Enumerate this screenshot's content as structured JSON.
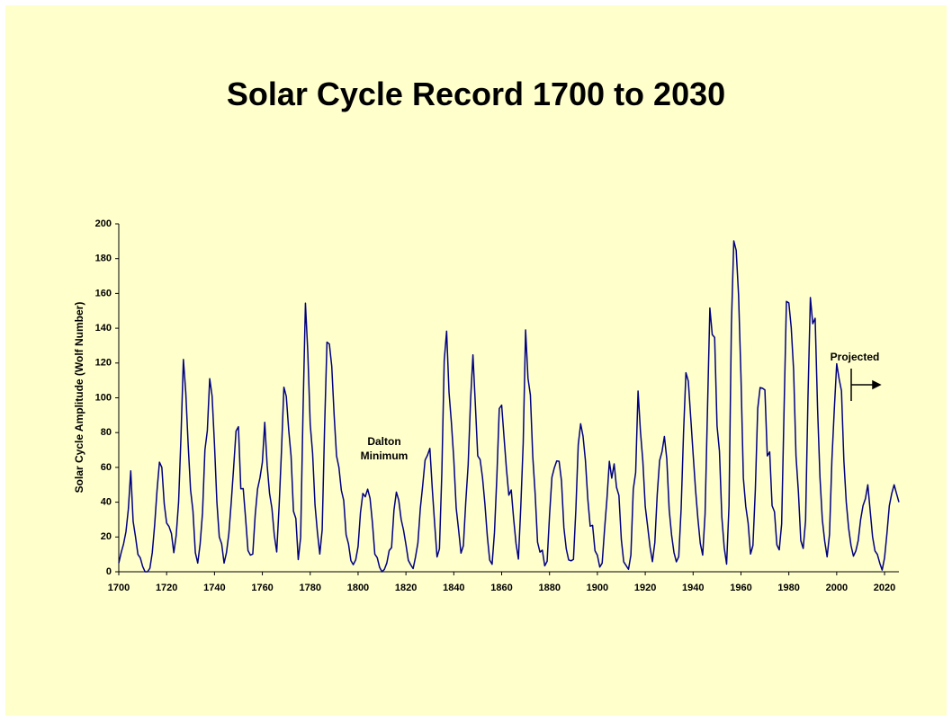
{
  "chart_data": {
    "type": "line",
    "title": "Solar Cycle Record 1700 to 2030",
    "y_label": "Solar Cycle Amplitude (Wolf Number)",
    "annotations": [
      [
        "Dalton",
        "Minimum"
      ],
      [
        "Projected"
      ]
    ],
    "xlim": [
      1700,
      2026
    ],
    "xticks": [
      1700,
      1720,
      1740,
      1760,
      1780,
      1800,
      1820,
      1840,
      1860,
      1880,
      1900,
      1920,
      1940,
      1960,
      1980,
      2000,
      2020
    ],
    "ylim": [
      0,
      200
    ],
    "yticks": [
      0,
      20,
      40,
      60,
      80,
      100,
      120,
      140,
      160,
      180,
      200
    ],
    "x": [
      1700,
      1701,
      1702,
      1703,
      1704,
      1705,
      1706,
      1707,
      1708,
      1709,
      1710,
      1711,
      1712,
      1713,
      1714,
      1715,
      1716,
      1717,
      1718,
      1719,
      1720,
      1721,
      1722,
      1723,
      1724,
      1725,
      1726,
      1727,
      1728,
      1729,
      1730,
      1731,
      1732,
      1733,
      1734,
      1735,
      1736,
      1737,
      1738,
      1739,
      1740,
      1741,
      1742,
      1743,
      1744,
      1745,
      1746,
      1747,
      1748,
      1749,
      1750,
      1751,
      1752,
      1753,
      1754,
      1755,
      1756,
      1757,
      1758,
      1759,
      1760,
      1761,
      1762,
      1763,
      1764,
      1765,
      1766,
      1767,
      1768,
      1769,
      1770,
      1771,
      1772,
      1773,
      1774,
      1775,
      1776,
      1777,
      1778,
      1779,
      1780,
      1781,
      1782,
      1783,
      1784,
      1785,
      1786,
      1787,
      1788,
      1789,
      1790,
      1791,
      1792,
      1793,
      1794,
      1795,
      1796,
      1797,
      1798,
      1799,
      1800,
      1801,
      1802,
      1803,
      1804,
      1805,
      1806,
      1807,
      1808,
      1809,
      1810,
      1811,
      1812,
      1813,
      1814,
      1815,
      1816,
      1817,
      1818,
      1819,
      1820,
      1821,
      1822,
      1823,
      1824,
      1825,
      1826,
      1827,
      1828,
      1829,
      1830,
      1831,
      1832,
      1833,
      1834,
      1835,
      1836,
      1837,
      1838,
      1839,
      1840,
      1841,
      1842,
      1843,
      1844,
      1845,
      1846,
      1847,
      1848,
      1849,
      1850,
      1851,
      1852,
      1853,
      1854,
      1855,
      1856,
      1857,
      1858,
      1859,
      1860,
      1861,
      1862,
      1863,
      1864,
      1865,
      1866,
      1867,
      1868,
      1869,
      1870,
      1871,
      1872,
      1873,
      1874,
      1875,
      1876,
      1877,
      1878,
      1879,
      1880,
      1881,
      1882,
      1883,
      1884,
      1885,
      1886,
      1887,
      1888,
      1889,
      1890,
      1891,
      1892,
      1893,
      1894,
      1895,
      1896,
      1897,
      1898,
      1899,
      1900,
      1901,
      1902,
      1903,
      1904,
      1905,
      1906,
      1907,
      1908,
      1909,
      1910,
      1911,
      1912,
      1913,
      1914,
      1915,
      1916,
      1917,
      1918,
      1919,
      1920,
      1921,
      1922,
      1923,
      1924,
      1925,
      1926,
      1927,
      1928,
      1929,
      1930,
      1931,
      1932,
      1933,
      1934,
      1935,
      1936,
      1937,
      1938,
      1939,
      1940,
      1941,
      1942,
      1943,
      1944,
      1945,
      1946,
      1947,
      1948,
      1949,
      1950,
      1951,
      1952,
      1953,
      1954,
      1955,
      1956,
      1957,
      1958,
      1959,
      1960,
      1961,
      1962,
      1963,
      1964,
      1965,
      1966,
      1967,
      1968,
      1969,
      1970,
      1971,
      1972,
      1973,
      1974,
      1975,
      1976,
      1977,
      1978,
      1979,
      1980,
      1981,
      1982,
      1983,
      1984,
      1985,
      1986,
      1987,
      1988,
      1989,
      1990,
      1991,
      1992,
      1993,
      1994,
      1995,
      1996,
      1997,
      1998,
      1999,
      2000,
      2001,
      2002,
      2003,
      2004,
      2005,
      2006,
      2007,
      2008,
      2009,
      2010,
      2011,
      2012,
      2013,
      2014,
      2015,
      2016,
      2017,
      2018,
      2019,
      2020,
      2021,
      2022,
      2023,
      2024,
      2025,
      2026
    ],
    "series": [
      {
        "color": "#000080",
        "values": [
          5,
          11,
          16,
          23,
          36,
          58,
          29,
          20,
          10,
          8,
          3,
          0,
          0,
          2,
          11,
          27,
          47,
          63,
          60,
          39,
          28,
          26,
          22,
          11,
          21,
          40,
          78,
          122,
          103,
          73,
          47,
          35,
          11,
          5,
          16,
          34,
          70,
          81,
          111,
          101,
          73,
          40,
          20,
          16,
          5,
          11,
          22,
          40,
          60,
          80.9,
          83.4,
          47.7,
          47.8,
          30.7,
          12.2,
          9.6,
          10.2,
          32.4,
          47.6,
          54,
          62.9,
          85.9,
          61.2,
          45.1,
          36.4,
          20.9,
          11.4,
          37.8,
          69.8,
          106.1,
          100.8,
          81.6,
          66.5,
          34.8,
          30.6,
          7,
          19.8,
          92.5,
          154.4,
          125.9,
          84.8,
          68.1,
          38.5,
          22.8,
          10.2,
          24.1,
          82.9,
          132,
          130.9,
          118.1,
          89.9,
          66.6,
          60,
          46.9,
          41,
          21.3,
          16,
          6.4,
          4.1,
          6.8,
          14.5,
          34,
          45,
          43.1,
          47.5,
          42.2,
          28.1,
          10.1,
          8.1,
          2.5,
          0,
          1.4,
          5,
          12.2,
          13.9,
          35.4,
          45.8,
          41.1,
          30.1,
          23.9,
          15.6,
          6.6,
          4,
          1.8,
          8.5,
          16.6,
          36.3,
          49.6,
          64.2,
          67,
          70.9,
          47.8,
          27.5,
          8.5,
          13.2,
          56.9,
          121.5,
          138.3,
          103.2,
          85.7,
          64.6,
          36.7,
          24.2,
          10.7,
          15,
          40.1,
          61.5,
          98.5,
          124.7,
          96.3,
          66.6,
          64.5,
          54.1,
          39,
          20.6,
          6.7,
          4.3,
          22.7,
          54.8,
          93.8,
          95.8,
          77.2,
          59.1,
          44,
          47,
          30.5,
          16.3,
          7.3,
          37.6,
          74,
          139,
          111.2,
          101.6,
          66.2,
          44.7,
          17,
          11.3,
          12.4,
          3.4,
          6,
          32.3,
          54.3,
          59.7,
          63.7,
          63.5,
          52.2,
          25.4,
          13.1,
          6.8,
          6.3,
          7.1,
          35.6,
          73,
          85.1,
          78,
          64,
          41.8,
          26.2,
          26.7,
          12.1,
          9.5,
          2.7,
          5,
          24.4,
          42,
          63.5,
          53.8,
          62,
          48.5,
          43.9,
          18.6,
          5.7,
          3.6,
          1.4,
          9.6,
          47.4,
          57.1,
          103.9,
          80.6,
          63.6,
          37.6,
          26.1,
          14.2,
          5.8,
          16.7,
          44.3,
          63.9,
          69,
          77.8,
          64.9,
          35.7,
          21.2,
          11.1,
          5.7,
          8.7,
          36.1,
          79.7,
          114.4,
          109.6,
          88.8,
          67.8,
          47.5,
          30.6,
          16.3,
          9.6,
          33.2,
          92.6,
          151.6,
          136.3,
          134.7,
          83.9,
          69.4,
          31.5,
          13.9,
          4.4,
          38,
          141.7,
          190.2,
          184.8,
          159,
          112.3,
          53.9,
          37.6,
          27.9,
          10.2,
          15.1,
          47,
          93.8,
          105.9,
          105.5,
          104.5,
          66.6,
          68.9,
          38,
          34.5,
          15.5,
          12.6,
          27.5,
          92.5,
          155.4,
          154.6,
          140.4,
          115.9,
          66.6,
          45.9,
          17.9,
          13.4,
          29.4,
          100.2,
          157.6,
          142.6,
          145.7,
          94.3,
          54.6,
          29.9,
          17.5,
          8.6,
          21.5,
          64.3,
          93.3,
          119.6,
          111,
          104,
          64,
          40,
          25,
          15,
          9,
          12,
          18,
          30,
          38,
          42,
          50,
          35,
          20,
          12,
          10,
          5,
          1,
          8,
          22,
          38,
          45,
          50,
          45,
          40
        ]
      }
    ]
  }
}
